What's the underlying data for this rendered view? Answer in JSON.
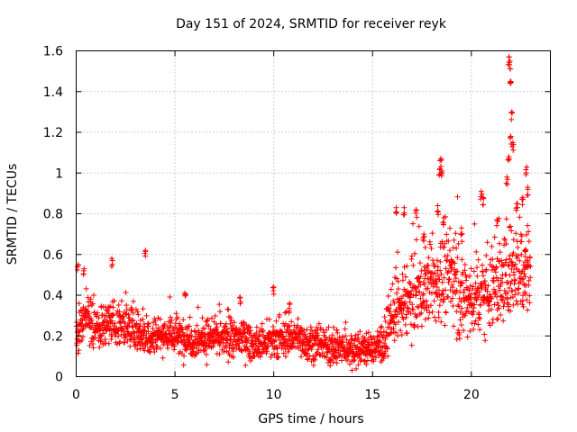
{
  "chart_data": {
    "type": "scatter",
    "title": "Day 151 of 2024, SRMTID for receiver reyk",
    "xlabel": "GPS time / hours",
    "ylabel": "SRMTID / TECUs",
    "xlim": [
      0,
      24
    ],
    "ylim": [
      0,
      1.6
    ],
    "xticks": [
      "0",
      "5",
      "10",
      "15",
      "20"
    ],
    "yticks": [
      "0",
      "0.2",
      "0.4",
      "0.6",
      "0.8",
      "1",
      "1.2",
      "1.4",
      "1.6"
    ],
    "grid": true,
    "marker": "+",
    "color": "#ff0000",
    "series": [
      {
        "name": "reyk",
        "profile": {
          "x": [
            0,
            0.3,
            0.6,
            1,
            2,
            3,
            3.6,
            4,
            5,
            6,
            7,
            8,
            8.5,
            9,
            10,
            11,
            12,
            13,
            14,
            15,
            15.6,
            16,
            16.5,
            17,
            17.5,
            18,
            18.5,
            19,
            19.5,
            20,
            20.5,
            21,
            21.5,
            22,
            22.5,
            23
          ],
          "base": [
            0.22,
            0.28,
            0.3,
            0.24,
            0.26,
            0.24,
            0.2,
            0.21,
            0.2,
            0.18,
            0.19,
            0.18,
            0.2,
            0.15,
            0.17,
            0.2,
            0.16,
            0.14,
            0.13,
            0.14,
            0.16,
            0.3,
            0.34,
            0.4,
            0.42,
            0.45,
            0.48,
            0.5,
            0.4,
            0.38,
            0.42,
            0.45,
            0.45,
            0.55,
            0.55,
            0.55
          ],
          "spread": [
            0.1,
            0.12,
            0.12,
            0.09,
            0.1,
            0.1,
            0.09,
            0.08,
            0.08,
            0.08,
            0.08,
            0.08,
            0.08,
            0.07,
            0.08,
            0.08,
            0.07,
            0.07,
            0.07,
            0.07,
            0.08,
            0.14,
            0.15,
            0.16,
            0.16,
            0.18,
            0.2,
            0.2,
            0.18,
            0.18,
            0.18,
            0.2,
            0.2,
            0.22,
            0.22,
            0.2
          ]
        },
        "sample_count": 2100,
        "peaks": [
          {
            "x": 0.1,
            "y": 0.55
          },
          {
            "x": 0.4,
            "y": 0.53
          },
          {
            "x": 1.8,
            "y": 0.58
          },
          {
            "x": 3.5,
            "y": 0.62
          },
          {
            "x": 5.5,
            "y": 0.41
          },
          {
            "x": 8.3,
            "y": 0.39
          },
          {
            "x": 10,
            "y": 0.44
          },
          {
            "x": 10.8,
            "y": 0.36
          },
          {
            "x": 16.2,
            "y": 0.83
          },
          {
            "x": 16.6,
            "y": 0.83
          },
          {
            "x": 17.2,
            "y": 0.82
          },
          {
            "x": 17.6,
            "y": 0.7
          },
          {
            "x": 18.3,
            "y": 0.84
          },
          {
            "x": 18.4,
            "y": 1.02
          },
          {
            "x": 18.45,
            "y": 1.07
          },
          {
            "x": 18.5,
            "y": 1.01
          },
          {
            "x": 18.6,
            "y": 0.78
          },
          {
            "x": 19.5,
            "y": 0.73
          },
          {
            "x": 20.5,
            "y": 0.91
          },
          {
            "x": 20.6,
            "y": 0.88
          },
          {
            "x": 21.3,
            "y": 0.77
          },
          {
            "x": 21.8,
            "y": 0.98
          },
          {
            "x": 21.9,
            "y": 1.57
          },
          {
            "x": 21.95,
            "y": 1.55
          },
          {
            "x": 22.0,
            "y": 1.45
          },
          {
            "x": 22.05,
            "y": 1.3
          },
          {
            "x": 22.0,
            "y": 1.18
          },
          {
            "x": 22.1,
            "y": 1.15
          },
          {
            "x": 21.9,
            "y": 1.08
          },
          {
            "x": 22.3,
            "y": 0.85
          },
          {
            "x": 22.6,
            "y": 0.88
          },
          {
            "x": 22.8,
            "y": 1.03
          },
          {
            "x": 22.85,
            "y": 0.93
          },
          {
            "x": 22.7,
            "y": 0.62
          }
        ]
      }
    ]
  }
}
